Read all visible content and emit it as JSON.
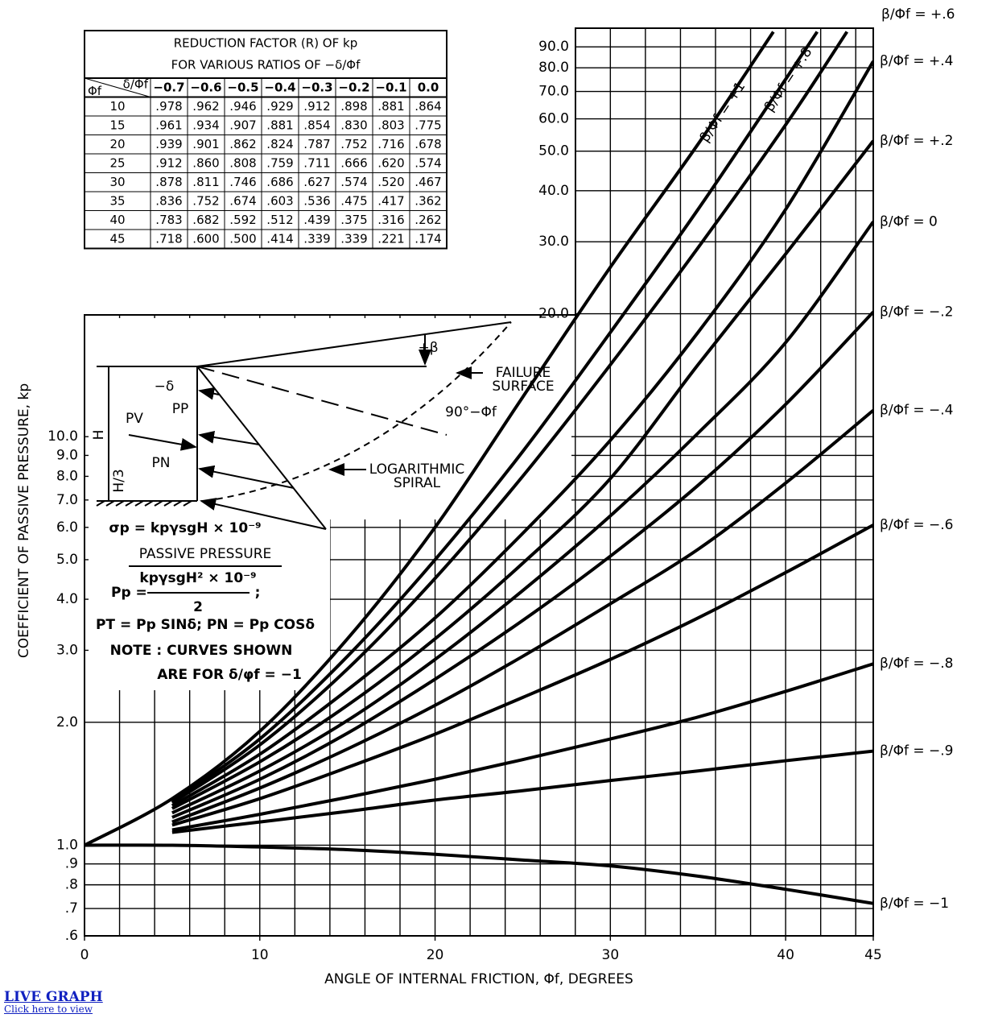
{
  "chart_data": {
    "type": "line",
    "x_label": "ANGLE OF INTERNAL FRICTION, Φf, DEGREES",
    "y_label": "COEFFICIENT OF PASSIVE PRESSURE, kp",
    "log_y": true,
    "grid": true,
    "color": "#000000",
    "xlim": [
      0,
      45
    ],
    "ylim": [
      0.6,
      100
    ],
    "xticks": [
      0,
      10,
      20,
      30,
      40,
      45
    ],
    "xgrid": [
      0,
      2,
      4,
      6,
      8,
      10,
      12,
      14,
      16,
      18,
      20,
      22,
      24,
      26,
      28,
      30,
      32,
      34,
      36,
      38,
      40,
      42,
      44
    ],
    "yticks": [
      {
        "value": 0.6,
        "label": ".6"
      },
      {
        "value": 0.7,
        "label": ".7"
      },
      {
        "value": 0.8,
        "label": ".8"
      },
      {
        "value": 0.9,
        "label": ".9"
      },
      {
        "value": 1,
        "label": "1.0"
      },
      {
        "value": 2,
        "label": "2.0"
      },
      {
        "value": 3,
        "label": "3.0"
      },
      {
        "value": 4,
        "label": "4.0"
      },
      {
        "value": 5,
        "label": "5.0"
      },
      {
        "value": 6,
        "label": "6.0"
      },
      {
        "value": 7,
        "label": "7.0"
      },
      {
        "value": 8,
        "label": "8.0"
      },
      {
        "value": 9,
        "label": "9.0"
      },
      {
        "value": 10,
        "label": "10.0"
      },
      {
        "value": 20,
        "label": "20.0"
      },
      {
        "value": 30,
        "label": "30.0"
      },
      {
        "value": 40,
        "label": "40.0"
      },
      {
        "value": 50,
        "label": "50.0"
      },
      {
        "value": 60,
        "label": "60.0"
      },
      {
        "value": 70,
        "label": "70.0"
      },
      {
        "value": 80,
        "label": "80.0"
      },
      {
        "value": 90,
        "label": "90.0"
      }
    ],
    "series": [
      {
        "name": "β/Φf = +1",
        "x": [
          0,
          5,
          10,
          15,
          20,
          25,
          30,
          35,
          39.3
        ],
        "values": [
          1.0,
          1.3,
          1.9,
          3.2,
          6.0,
          12.5,
          26,
          52,
          98
        ]
      },
      {
        "name": "β/Φf = +.8",
        "x": [
          5,
          10,
          15,
          20,
          25,
          30,
          35,
          40,
          41.8
        ],
        "values": [
          1.28,
          1.82,
          2.9,
          5.0,
          9.2,
          18,
          36,
          75,
          98
        ]
      },
      {
        "name": "β/Φf = +.6",
        "x": [
          5,
          10,
          15,
          20,
          25,
          30,
          35,
          40,
          43.5
        ],
        "values": [
          1.27,
          1.76,
          2.7,
          4.5,
          8.0,
          15,
          29,
          58,
          98
        ]
      },
      {
        "name": "β/Φf = +.4",
        "x": [
          5,
          10,
          15,
          20,
          25,
          30,
          35,
          40,
          45
        ],
        "values": [
          1.25,
          1.67,
          2.4,
          3.6,
          5.8,
          9.8,
          18,
          36,
          83
        ]
      },
      {
        "name": "β/Φf = +.2",
        "x": [
          5,
          10,
          15,
          20,
          25,
          30,
          35,
          40,
          45
        ],
        "values": [
          1.23,
          1.6,
          2.2,
          3.2,
          4.9,
          7.9,
          15,
          28,
          53
        ]
      },
      {
        "name": "β/Φf = 0",
        "x": [
          5,
          10,
          15,
          20,
          25,
          30,
          35,
          40,
          45
        ],
        "values": [
          1.2,
          1.52,
          2.02,
          2.85,
          4.2,
          6.4,
          10.2,
          17,
          33.6
        ]
      },
      {
        "name": "β/Φf = −.2",
        "x": [
          5,
          10,
          15,
          20,
          25,
          30,
          35,
          40,
          45
        ],
        "values": [
          1.17,
          1.45,
          1.88,
          2.55,
          3.55,
          5.1,
          7.6,
          12,
          20.2
        ]
      },
      {
        "name": "β/Φf = −.4",
        "x": [
          5,
          10,
          15,
          20,
          25,
          30,
          35,
          40,
          45
        ],
        "values": [
          1.14,
          1.38,
          1.72,
          2.2,
          2.9,
          3.9,
          5.3,
          7.7,
          11.6
        ]
      },
      {
        "name": "β/Φf = −.6",
        "x": [
          5,
          10,
          15,
          20,
          25,
          30,
          35,
          40,
          45
        ],
        "values": [
          1.12,
          1.3,
          1.55,
          1.87,
          2.3,
          2.85,
          3.6,
          4.65,
          6.08
        ]
      },
      {
        "name": "β/Φf = −.8",
        "x": [
          5,
          10,
          15,
          20,
          25,
          30,
          35,
          40,
          45
        ],
        "values": [
          1.09,
          1.19,
          1.31,
          1.45,
          1.62,
          1.82,
          2.06,
          2.38,
          2.78
        ]
      },
      {
        "name": "β/Φf = −.9",
        "x": [
          5,
          10,
          15,
          20,
          25,
          30,
          35,
          40,
          45
        ],
        "values": [
          1.075,
          1.14,
          1.21,
          1.29,
          1.36,
          1.44,
          1.52,
          1.61,
          1.7
        ]
      },
      {
        "name": "β/Φf = −1",
        "x": [
          0,
          5,
          10,
          15,
          20,
          25,
          30,
          35,
          40,
          45
        ],
        "values": [
          1.0,
          1.0,
          0.99,
          0.975,
          0.95,
          0.92,
          0.89,
          0.84,
          0.78,
          0.72
        ]
      }
    ]
  },
  "table": {
    "title": [
      "REDUCTION FACTOR (R) OF kp",
      "FOR VARIOUS RATIOS OF −δ/Φf"
    ],
    "header": [
      "Φf",
      "δ/Φf",
      "−0.7",
      "−0.6",
      "−0.5",
      "−0.4",
      "−0.3",
      "−0.2",
      "−0.1",
      "0.0"
    ],
    "rows": [
      [
        "10",
        ".978",
        ".962",
        ".946",
        ".929",
        ".912",
        ".898",
        ".881",
        ".864"
      ],
      [
        "15",
        ".961",
        ".934",
        ".907",
        ".881",
        ".854",
        ".830",
        ".803",
        ".775"
      ],
      [
        "20",
        ".939",
        ".901",
        ".862",
        ".824",
        ".787",
        ".752",
        ".716",
        ".678"
      ],
      [
        "25",
        ".912",
        ".860",
        ".808",
        ".759",
        ".711",
        ".666",
        ".620",
        ".574"
      ],
      [
        "30",
        ".878",
        ".811",
        ".746",
        ".686",
        ".627",
        ".574",
        ".520",
        ".467"
      ],
      [
        "35",
        ".836",
        ".752",
        ".674",
        ".603",
        ".536",
        ".475",
        ".417",
        ".362"
      ],
      [
        "40",
        ".783",
        ".682",
        ".592",
        ".512",
        ".439",
        ".375",
        ".316",
        ".262"
      ],
      [
        "45",
        ".718",
        ".600",
        ".500",
        ".414",
        ".339",
        ".339",
        ".221",
        ".174"
      ]
    ]
  },
  "annotations": [
    "+β",
    "FAILURE",
    "SURFACE",
    "90°−Φf",
    "−δ",
    "PP",
    "PV",
    "PN",
    "H",
    "H/3",
    "LOGARITHMIC",
    "SPIRAL",
    "σp = kpγsgH × 10⁻⁹",
    "PASSIVE PRESSURE",
    "Pp =",
    "kpγsgH² × 10⁻⁹",
    "2",
    ";",
    "PT = Pp SINδ; PN = Pp COSδ",
    "NOTE : CURVES SHOWN",
    "ARE FOR δ/φf = −1"
  ],
  "link": {
    "title": "LIVE GRAPH",
    "subtitle": "Click here to view"
  }
}
